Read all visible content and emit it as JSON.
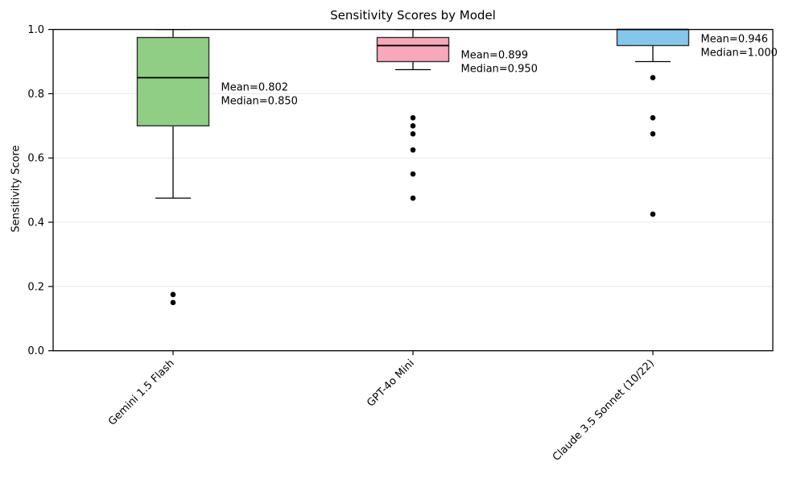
{
  "chart_data": {
    "type": "boxplot",
    "title": "Sensitivity Scores by Model",
    "xlabel": "",
    "ylabel": "Sensitivity Score",
    "ylim": [
      0.0,
      1.0
    ],
    "yticks": [
      0.0,
      0.2,
      0.4,
      0.6,
      0.8,
      1.0
    ],
    "grid": "horizontal",
    "legend": "none",
    "categories": [
      "Gemini 1.5 Flash",
      "GPT-4o Mini",
      "Claude 3.5 Sonnet (10/22)"
    ],
    "series": [
      {
        "model": "Gemini 1.5 Flash",
        "box_color": "#90ce85",
        "whisker_low": 0.475,
        "q1": 0.7,
        "median": 0.85,
        "q3": 0.975,
        "whisker_high": 1.0,
        "mean": 0.802,
        "outliers": [
          0.175,
          0.15
        ],
        "annotation_lines": [
          "Mean=0.802",
          "Median=0.850"
        ]
      },
      {
        "model": "GPT-4o Mini",
        "box_color": "#f9a8bc",
        "whisker_low": 0.875,
        "q1": 0.9,
        "median": 0.95,
        "q3": 0.975,
        "whisker_high": 1.0,
        "mean": 0.899,
        "outliers": [
          0.725,
          0.7,
          0.675,
          0.625,
          0.55,
          0.475
        ],
        "annotation_lines": [
          "Mean=0.899",
          "Median=0.950"
        ]
      },
      {
        "model": "Claude 3.5 Sonnet (10/22)",
        "box_color": "#85c6ec",
        "whisker_low": 0.9,
        "q1": 0.95,
        "median": 1.0,
        "q3": 1.0,
        "whisker_high": 1.0,
        "mean": 0.946,
        "outliers": [
          0.85,
          0.725,
          0.675,
          0.425
        ],
        "annotation_lines": [
          "Mean=0.946",
          "Median=1.000"
        ]
      }
    ],
    "colors": {
      "gridline": "#e7e7e7",
      "spine": "#000000",
      "box_edge": "#2f2f2f",
      "median_line": "#000000",
      "whisker": "#000000",
      "outlier": "#000000",
      "tick_label": "#000000",
      "annotation_text": "#000000"
    }
  }
}
